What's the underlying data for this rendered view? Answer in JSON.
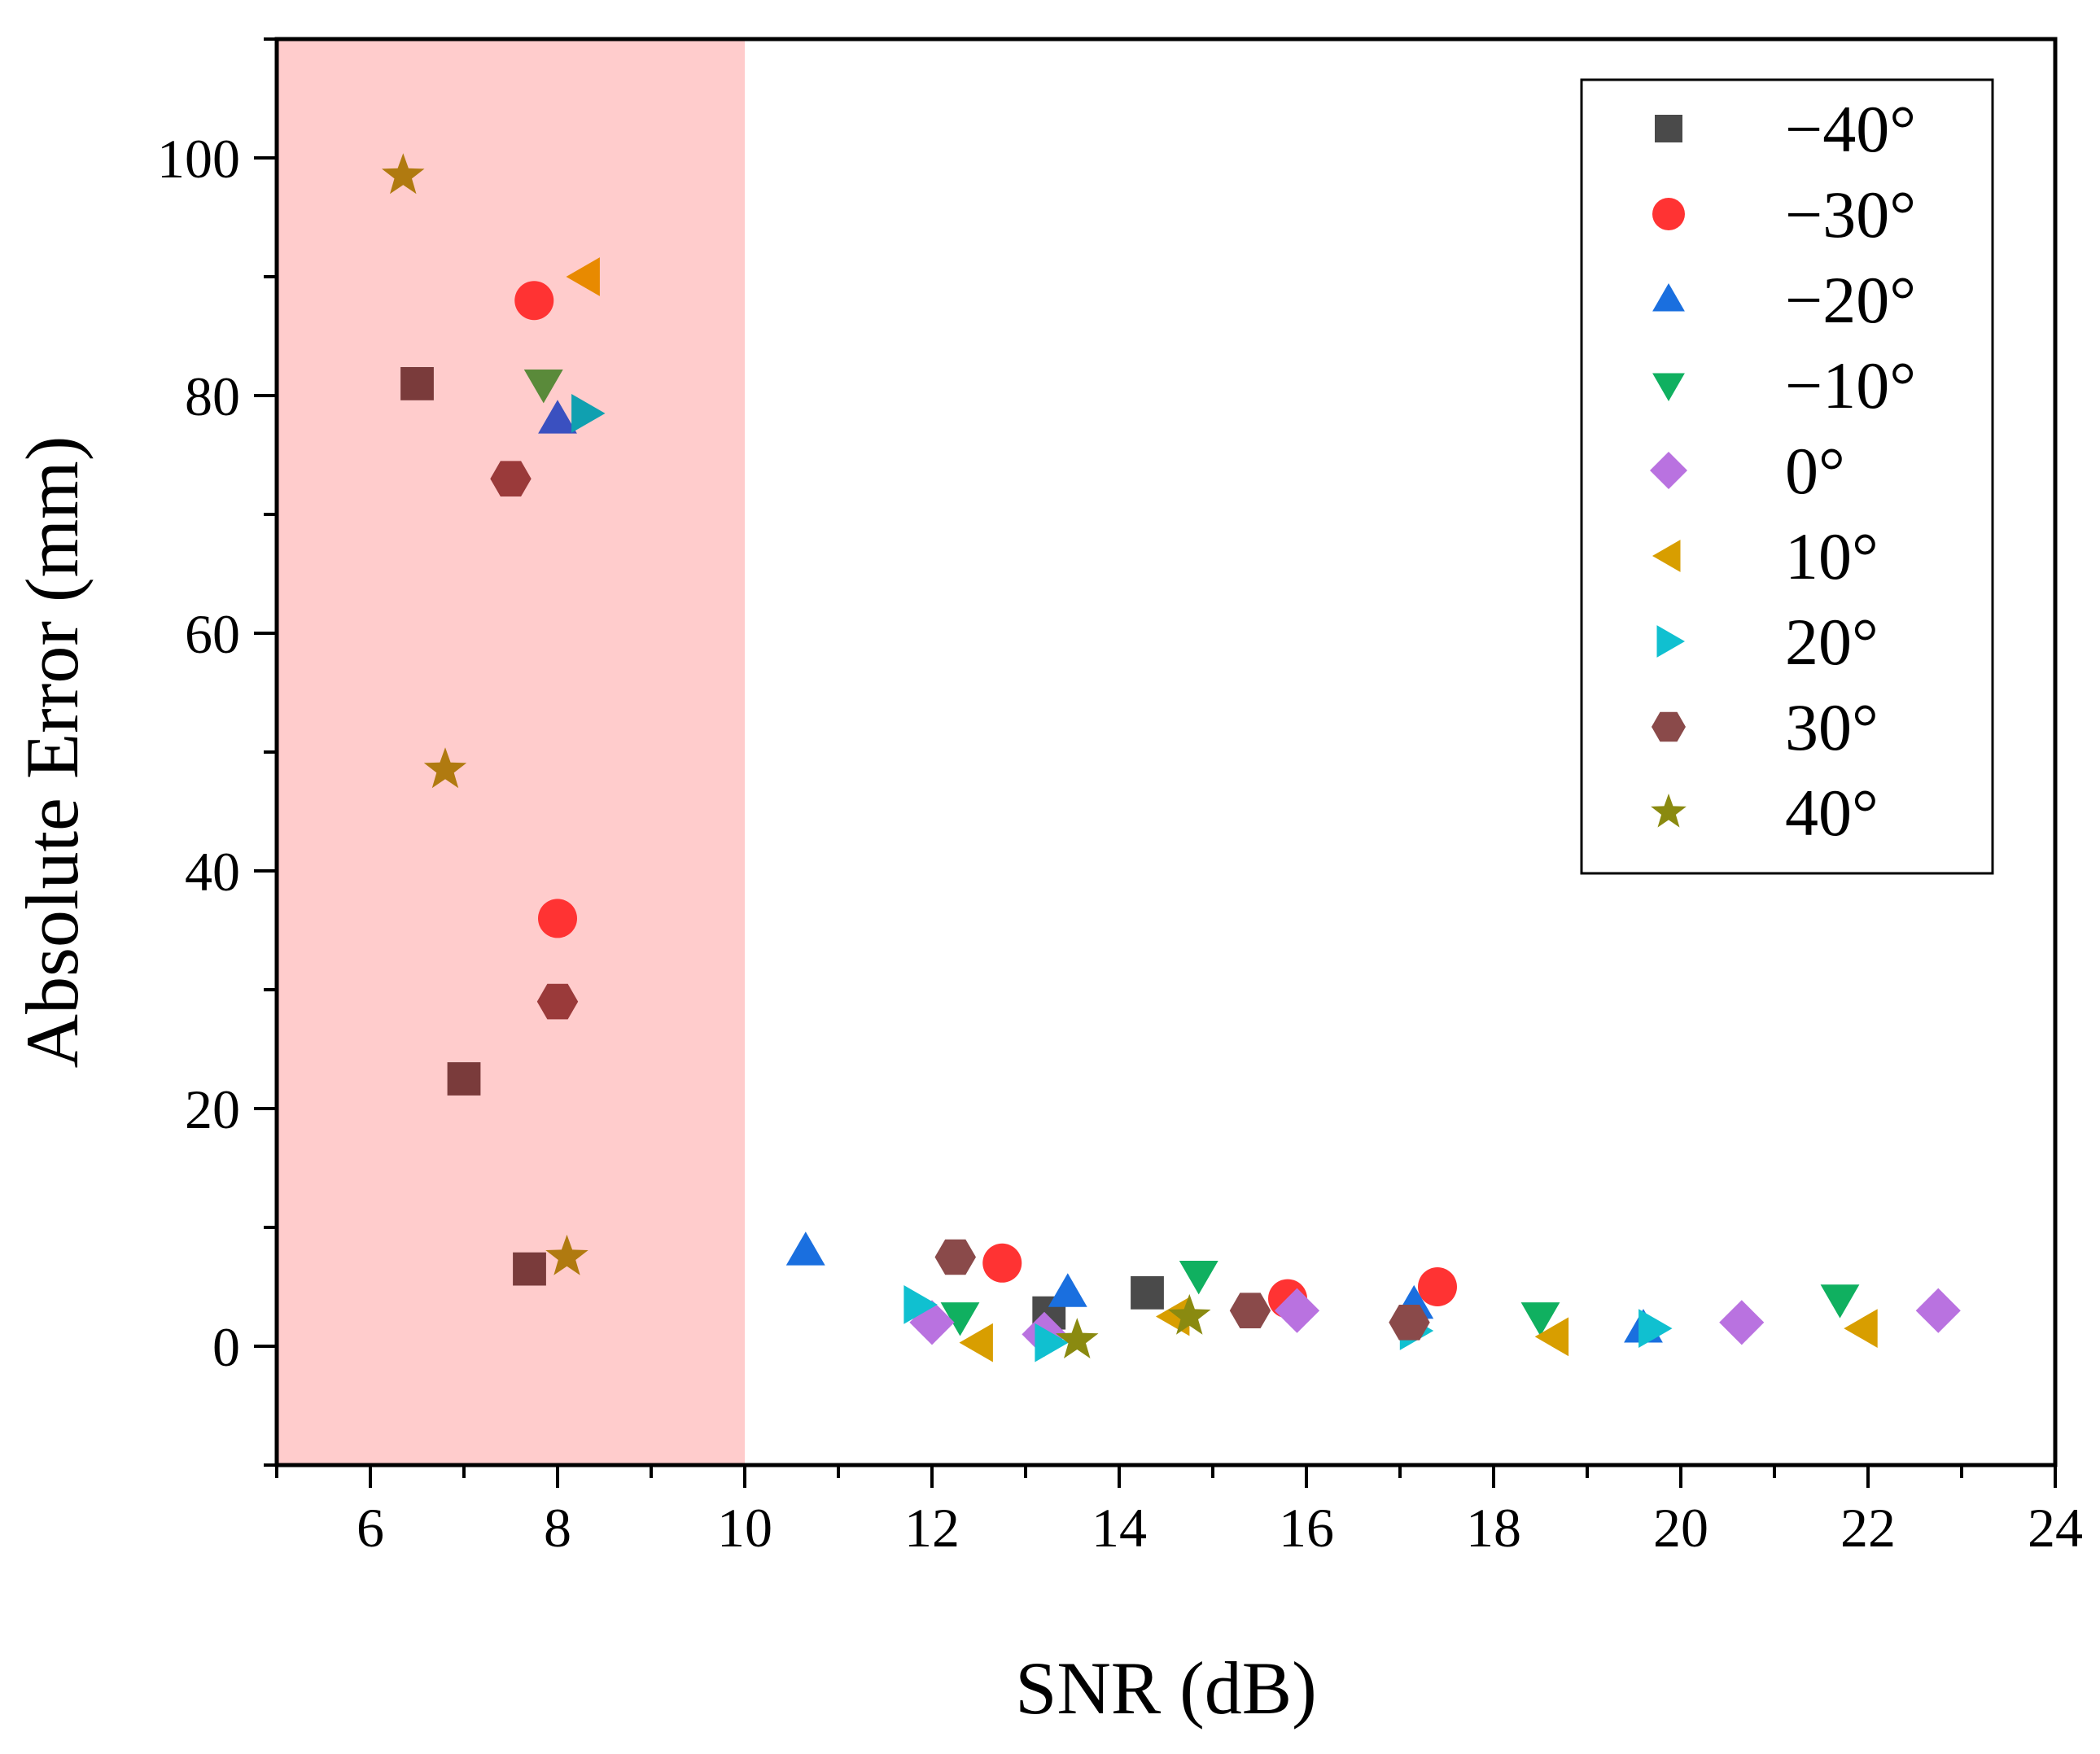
{
  "chart_data": {
    "type": "scatter",
    "xlabel": "SNR (dB)",
    "ylabel": "Absolute Error (mm)",
    "xlim": [
      5,
      24
    ],
    "ylim": [
      -10,
      110
    ],
    "xticks": [
      6,
      8,
      10,
      12,
      14,
      16,
      18,
      20,
      22,
      24
    ],
    "yticks": [
      0,
      20,
      40,
      60,
      80,
      100
    ],
    "legend_position": "top-right",
    "highlight_region": {
      "x_start": 5,
      "x_end": 10,
      "color": "#ffcccc"
    },
    "series": [
      {
        "name": "−40°",
        "marker": "square",
        "color": "#4a4a4a",
        "low_snr_color": "#7a3b3b",
        "points": [
          [
            6.5,
            81
          ],
          [
            7.0,
            22.5
          ],
          [
            7.7,
            6.5
          ],
          [
            13.25,
            2.8
          ],
          [
            14.3,
            4.5
          ]
        ]
      },
      {
        "name": "−30°",
        "marker": "circle",
        "color": "#ff3333",
        "points": [
          [
            7.75,
            88
          ],
          [
            8.0,
            36
          ],
          [
            12.75,
            7
          ],
          [
            15.8,
            4
          ],
          [
            17.4,
            5
          ]
        ]
      },
      {
        "name": "−20°",
        "marker": "triangle-up",
        "color": "#1a6fdf",
        "low_snr_color": "#3a50c0",
        "points": [
          [
            8.0,
            78
          ],
          [
            10.65,
            8
          ],
          [
            13.45,
            4.5
          ],
          [
            17.15,
            3.5
          ],
          [
            19.6,
            1.5
          ]
        ]
      },
      {
        "name": "−10°",
        "marker": "triangle-down",
        "color": "#10b060",
        "low_snr_color": "#5a8a3a",
        "points": [
          [
            7.85,
            81
          ],
          [
            12.3,
            2.5
          ],
          [
            14.85,
            6
          ],
          [
            18.5,
            2.5
          ],
          [
            21.7,
            4
          ]
        ]
      },
      {
        "name": "0°",
        "marker": "diamond",
        "color": "#b972e0",
        "points": [
          [
            12.0,
            2
          ],
          [
            13.2,
            1
          ],
          [
            15.9,
            3
          ],
          [
            20.65,
            2
          ],
          [
            22.75,
            3
          ]
        ]
      },
      {
        "name": "10°",
        "marker": "triangle-left",
        "color": "#d89e00",
        "low_snr_color": "#e88a00",
        "points": [
          [
            8.3,
            90
          ],
          [
            12.5,
            0.3
          ],
          [
            14.6,
            2.5
          ],
          [
            18.65,
            0.8
          ],
          [
            21.95,
            1.5
          ]
        ]
      },
      {
        "name": "20°",
        "marker": "triangle-right",
        "color": "#10c0d0",
        "low_snr_color": "#10a0b0",
        "points": [
          [
            8.3,
            78.5
          ],
          [
            11.85,
            3.5
          ],
          [
            13.25,
            0.3
          ],
          [
            17.15,
            1.3
          ],
          [
            19.7,
            1.5
          ]
        ]
      },
      {
        "name": "30°",
        "marker": "hexagon",
        "color": "#8a4a4a",
        "low_snr_color": "#9a3a3a",
        "points": [
          [
            7.5,
            73
          ],
          [
            8.0,
            29
          ],
          [
            12.25,
            7.5
          ],
          [
            15.4,
            3
          ],
          [
            17.1,
            2
          ]
        ]
      },
      {
        "name": "40°",
        "marker": "star",
        "color": "#8a8a10",
        "low_snr_color": "#b07a10",
        "points": [
          [
            6.35,
            98.5
          ],
          [
            6.8,
            48.5
          ],
          [
            8.1,
            7.5
          ],
          [
            13.55,
            0.5
          ],
          [
            14.75,
            2.5
          ]
        ]
      }
    ]
  }
}
